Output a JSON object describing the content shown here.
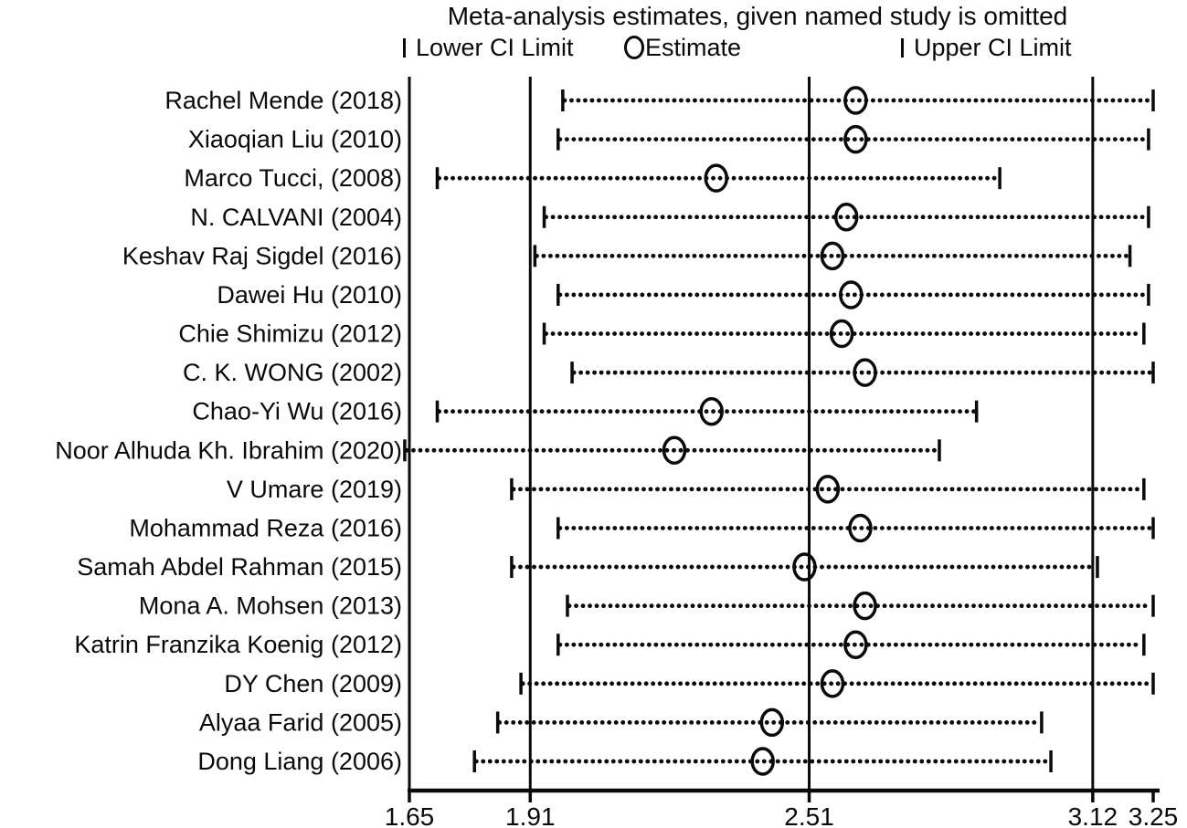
{
  "colors": {
    "ink": "#0a0a0a",
    "background": "#ffffff"
  },
  "chart_data": {
    "type": "scatter",
    "subtype": "leave-one-out-forest-plot",
    "title": "Meta-analysis estimates, given named study is omitted",
    "legend": [
      "Lower CI Limit",
      "Estimate",
      "Upper CI Limit"
    ],
    "legend_position": "top",
    "grid": false,
    "xlim": [
      1.65,
      3.25
    ],
    "x_tick_labels": [
      "1.65",
      "1.91",
      "2.51",
      "3.12",
      "3.25"
    ],
    "x_tick_values": [
      1.65,
      1.91,
      2.51,
      3.12,
      3.25
    ],
    "reference_lines": [
      1.65,
      1.91,
      2.51,
      3.12
    ],
    "studies": [
      {
        "label": "Rachel Mende (2018)",
        "lower": 1.98,
        "estimate": 2.61,
        "upper": 3.25
      },
      {
        "label": "Xiaoqian Liu (2010)",
        "lower": 1.97,
        "estimate": 2.61,
        "upper": 3.24
      },
      {
        "label": "Marco Tucci, (2008)",
        "lower": 1.71,
        "estimate": 2.31,
        "upper": 2.92
      },
      {
        "label": "N. CALVANI (2004)",
        "lower": 1.94,
        "estimate": 2.59,
        "upper": 3.24
      },
      {
        "label": "Keshav Raj Sigdel (2016)",
        "lower": 1.92,
        "estimate": 2.56,
        "upper": 3.2
      },
      {
        "label": "Dawei Hu  (2010)",
        "lower": 1.97,
        "estimate": 2.6,
        "upper": 3.24
      },
      {
        "label": "Chie Shimizu (2012)",
        "lower": 1.94,
        "estimate": 2.58,
        "upper": 3.23
      },
      {
        "label": "C. K. WONG (2002)",
        "lower": 2.0,
        "estimate": 2.63,
        "upper": 3.25
      },
      {
        "label": "Chao-Yi Wu (2016)",
        "lower": 1.71,
        "estimate": 2.3,
        "upper": 2.87
      },
      {
        "label": "Noor Alhuda Kh. Ibrahim (2020)",
        "lower": 1.64,
        "estimate": 2.22,
        "upper": 2.79
      },
      {
        "label": "V Umare (2019)",
        "lower": 1.87,
        "estimate": 2.55,
        "upper": 3.23
      },
      {
        "label": "Mohammad Reza (2016)",
        "lower": 1.97,
        "estimate": 2.62,
        "upper": 3.25
      },
      {
        "label": "Samah Abdel Rahman (2015)",
        "lower": 1.87,
        "estimate": 2.5,
        "upper": 3.13
      },
      {
        "label": "Mona A. Mohsen (2013)",
        "lower": 1.99,
        "estimate": 2.63,
        "upper": 3.25
      },
      {
        "label": "Katrin Franzika Koenig (2012)",
        "lower": 1.97,
        "estimate": 2.61,
        "upper": 3.23
      },
      {
        "label": "DY Chen (2009)",
        "lower": 1.89,
        "estimate": 2.56,
        "upper": 3.25
      },
      {
        "label": "Alyaa Farid (2005)",
        "lower": 1.84,
        "estimate": 2.43,
        "upper": 3.01
      },
      {
        "label": "Dong Liang (2006)",
        "lower": 1.79,
        "estimate": 2.41,
        "upper": 3.03
      }
    ]
  }
}
